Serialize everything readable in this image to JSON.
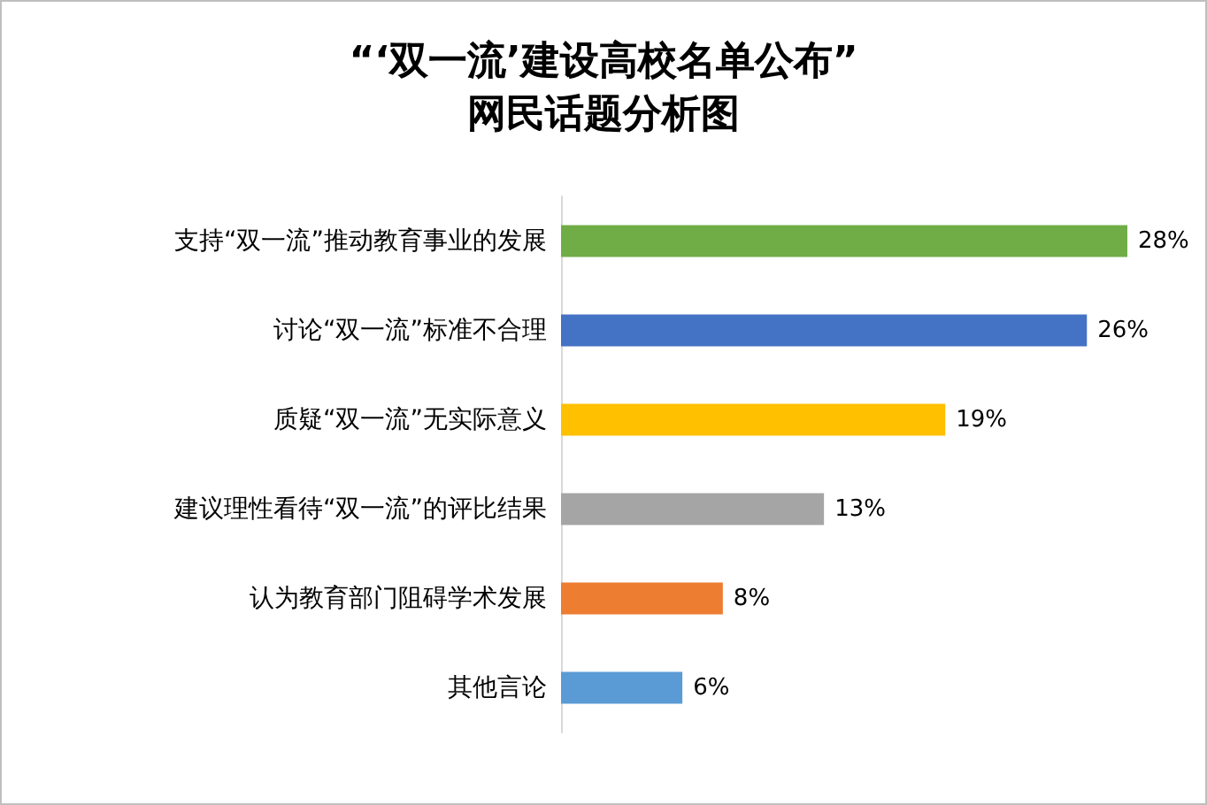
{
  "chart_data": {
    "type": "bar",
    "orientation": "horizontal",
    "title": "“‘双一流’建设高校名单公布”\n网民话题分析图",
    "categories": [
      "支持“双一流”推动教育事业的发展",
      "讨论“双一流”标准不合理",
      "质疑“双一流”无实际意义",
      "建议理性看待“双一流”的评比结果",
      "认为教育部门阻碍学术发展",
      "其他言论"
    ],
    "values": [
      28,
      26,
      19,
      13,
      8,
      6
    ],
    "colors": [
      "#70ad47",
      "#4472c4",
      "#ffc000",
      "#a5a5a5",
      "#ed7d31",
      "#5b9bd5"
    ],
    "value_labels": [
      "28%",
      "26%",
      "19%",
      "13%",
      "8%",
      "6%"
    ]
  }
}
